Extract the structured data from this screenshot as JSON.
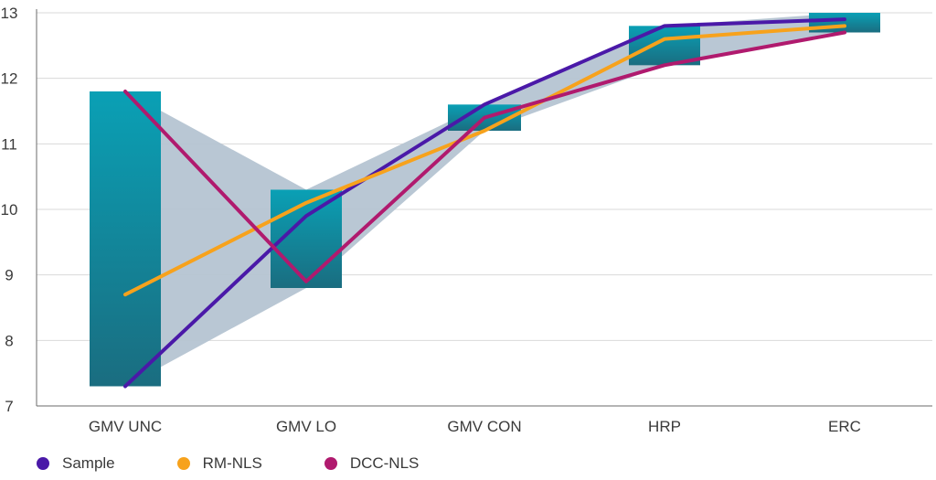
{
  "chart_data": {
    "type": "line",
    "categories": [
      "GMV UNC",
      "GMV LO",
      "GMV CON",
      "HRP",
      "ERC"
    ],
    "ylim": [
      7,
      13
    ],
    "yticks": [
      7,
      8,
      9,
      10,
      11,
      12,
      13
    ],
    "grid": true,
    "legend_position": "bottom-left",
    "ranges": [
      {
        "category": "GMV UNC",
        "low": 7.3,
        "high": 11.8
      },
      {
        "category": "GMV LO",
        "low": 8.8,
        "high": 10.3
      },
      {
        "category": "GMV CON",
        "low": 11.2,
        "high": 11.6
      },
      {
        "category": "HRP",
        "low": 12.2,
        "high": 12.8
      },
      {
        "category": "ERC",
        "low": 12.7,
        "high": 13.0
      }
    ],
    "series": [
      {
        "name": "Sample",
        "color": "#4a19a8",
        "values": [
          7.3,
          9.9,
          11.6,
          12.8,
          12.9
        ]
      },
      {
        "name": "RM-NLS",
        "color": "#f7a21c",
        "values": [
          8.7,
          10.1,
          11.2,
          12.6,
          12.8
        ]
      },
      {
        "name": "DCC-NLS",
        "color": "#b01a6e",
        "values": [
          11.8,
          8.9,
          11.4,
          12.2,
          12.7
        ]
      }
    ],
    "colors": {
      "box_top": "#0aa0b5",
      "box_bottom": "#1a6d80",
      "band": "#b5c4d2",
      "grid": "#d9d9d9",
      "axis": "#6b6b6b"
    }
  }
}
